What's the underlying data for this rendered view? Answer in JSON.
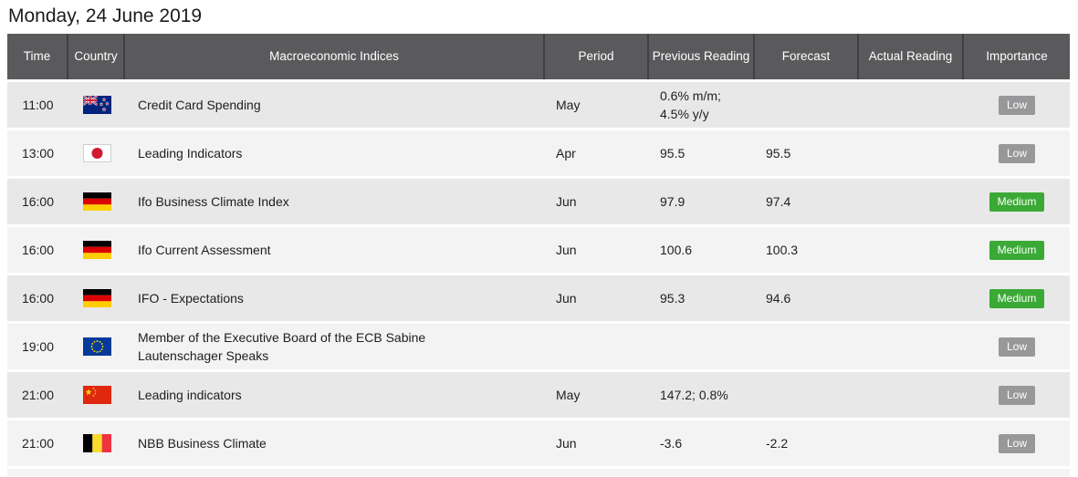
{
  "page": {
    "title": "Monday, 24 June 2019"
  },
  "colors": {
    "header_bg": "#5a5a5c",
    "header_divider": "#403f41",
    "header_text": "#ffffff",
    "row_dark_bg": "#e8e8e8",
    "row_light_bg": "#f3f3f3",
    "row_gap": "#ffffff",
    "body_text": "#1e1e1e",
    "badge_text": "#ffffff",
    "badge_low_bg": "#98989a",
    "badge_medium_bg": "#3aa935",
    "bottom_strip": "#f4f4f4"
  },
  "table": {
    "header": {
      "time": "Time",
      "country": "Country",
      "indices": "Macroeconomic Indices",
      "period": "Period",
      "previous": "Previous Reading",
      "forecast": "Forecast",
      "actual": "Actual Reading",
      "importance": "Importance"
    },
    "rows": [
      {
        "time": "11:00",
        "country": "New Zealand",
        "flag": "nz",
        "index": "Credit Card Spending",
        "period": "May",
        "previous": "0.6% m/m;\n4.5% y/y",
        "forecast": "",
        "actual": "",
        "importance": "Low"
      },
      {
        "time": "13:00",
        "country": "Japan",
        "flag": "jp",
        "index": "Leading Indicators",
        "period": "Apr",
        "previous": "95.5",
        "forecast": "95.5",
        "actual": "",
        "importance": "Low"
      },
      {
        "time": "16:00",
        "country": "Germany",
        "flag": "de",
        "index": "Ifo Business Climate Index",
        "period": "Jun",
        "previous": "97.9",
        "forecast": "97.4",
        "actual": "",
        "importance": "Medium"
      },
      {
        "time": "16:00",
        "country": "Germany",
        "flag": "de",
        "index": "Ifo Current Assessment",
        "period": "Jun",
        "previous": "100.6",
        "forecast": "100.3",
        "actual": "",
        "importance": "Medium"
      },
      {
        "time": "16:00",
        "country": "Germany",
        "flag": "de",
        "index": "IFO - Expectations",
        "period": "Jun",
        "previous": "95.3",
        "forecast": "94.6",
        "actual": "",
        "importance": "Medium"
      },
      {
        "time": "19:00",
        "country": "European Union",
        "flag": "eu",
        "index": "Member of the Executive Board of the ECB Sabine Lautenschager Speaks",
        "period": "",
        "previous": "",
        "forecast": "",
        "actual": "",
        "importance": "Low"
      },
      {
        "time": "21:00",
        "country": "China",
        "flag": "cn",
        "index": "Leading indicators",
        "period": "May",
        "previous": "147.2; 0.8%",
        "forecast": "",
        "actual": "",
        "importance": "Low"
      },
      {
        "time": "21:00",
        "country": "Belgium",
        "flag": "be",
        "index": "NBB Business Climate",
        "period": "Jun",
        "previous": "-3.6",
        "forecast": "-2.2",
        "actual": "",
        "importance": "Low"
      }
    ]
  }
}
